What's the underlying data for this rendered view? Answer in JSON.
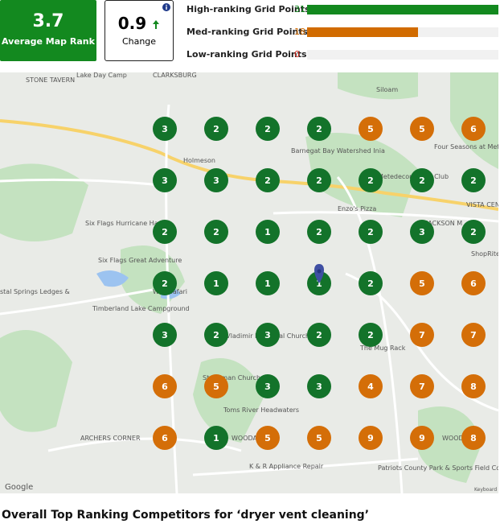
{
  "summary": {
    "average": {
      "value": "3.7",
      "label": "Average Map Rank"
    },
    "change": {
      "value": "0.9",
      "label": "Change"
    }
  },
  "grid_points": [
    {
      "label": "High-ranking Grid Points",
      "value": 31,
      "color": "#13891f"
    },
    {
      "label": "Med-ranking Grid Points",
      "value": 18,
      "color": "#d16b00"
    },
    {
      "label": "Low-ranking Grid Points",
      "value": 0,
      "color": "#d93025"
    }
  ],
  "map": {
    "labels": [
      "STONE TAVERN",
      "Lake Day Camp",
      "CLARKSBURG",
      "Siloam",
      "Holmeson",
      "Barnegat Bay Watershed Inia",
      "Four Seasons at Metedeconk Lakes",
      "Metedeconk Golf Club",
      "Enzo's Pizza",
      "VISTA CENTE",
      "JACKSON M",
      "Six Flags Hurricane Harbor",
      "Six Flags Great Adventure",
      "ShopRite",
      "Wild Safari",
      "stal Springs Ledges &",
      "Timberland Lake Campground",
      "St. Vladimir Memorial Church",
      "The Mug Rack",
      "St. Roman Church",
      "Toms River Headwaters",
      "ARCHERS CORNER",
      "WOODA",
      "WOOD",
      "Patriots County Park & Sports Field Complex",
      "K & R Appliance Repair",
      "Google",
      "Keyboard sh"
    ],
    "rows": [
      [
        3,
        2,
        2,
        2,
        5,
        5,
        6
      ],
      [
        3,
        3,
        2,
        2,
        2,
        2,
        2
      ],
      [
        2,
        2,
        1,
        2,
        2,
        3,
        2
      ],
      [
        2,
        1,
        1,
        1,
        2,
        5,
        6
      ],
      [
        3,
        2,
        3,
        2,
        2,
        7,
        7
      ],
      [
        6,
        5,
        3,
        3,
        4,
        7,
        8
      ],
      [
        6,
        1,
        5,
        5,
        9,
        9,
        8
      ]
    ],
    "high_color": "#13732a",
    "med_color": "#d46e08"
  },
  "section_title": "Overall Top Ranking Competitors for ‘dryer vent cleaning’"
}
